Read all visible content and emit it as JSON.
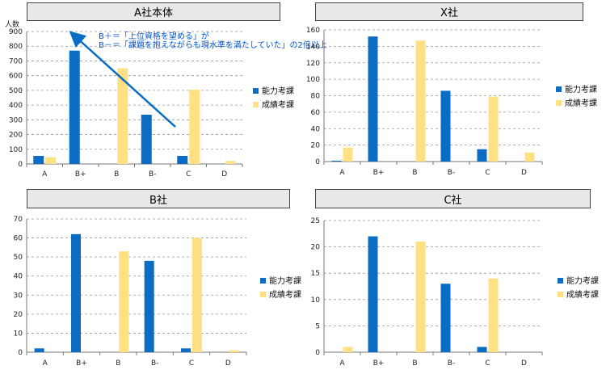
{
  "colors": {
    "ability": "#0a6cc2",
    "performance": "#ffe082",
    "grid": "#999999"
  },
  "chart_data": [
    {
      "type": "bar",
      "title": "A社本体",
      "ylabel": "人数",
      "ylim": [
        0,
        900
      ],
      "ytick_step": 100,
      "categories": [
        "A",
        "B+",
        "B",
        "B-",
        "C",
        "D"
      ],
      "series": [
        {
          "name": "能力考課",
          "values": [
            55,
            770,
            0,
            335,
            55,
            0
          ]
        },
        {
          "name": "成績考課",
          "values": [
            45,
            0,
            650,
            0,
            505,
            20
          ]
        }
      ],
      "annotations": [
        "B＋＝「上位資格を望める」が",
        "B－＝「課題を抱えながらも現水準を満たしていた」の2倍以上"
      ],
      "grid": true,
      "legend": "right"
    },
    {
      "type": "bar",
      "title": "X社",
      "ylim": [
        0,
        160
      ],
      "ytick_step": 20,
      "categories": [
        "A",
        "B+",
        "B",
        "B-",
        "C",
        "D"
      ],
      "series": [
        {
          "name": "能力考課",
          "values": [
            1,
            152,
            0,
            86,
            15,
            0
          ]
        },
        {
          "name": "成績考課",
          "values": [
            17,
            0,
            147,
            0,
            79,
            11
          ]
        }
      ],
      "grid": true,
      "legend": "right"
    },
    {
      "type": "bar",
      "title": "B社",
      "ylim": [
        0,
        70
      ],
      "ytick_step": 10,
      "categories": [
        "A",
        "B+",
        "B",
        "B-",
        "C",
        "D"
      ],
      "series": [
        {
          "name": "能力考課",
          "values": [
            2,
            62,
            0,
            48,
            2,
            0
          ]
        },
        {
          "name": "成績考課",
          "values": [
            0,
            0,
            53,
            0,
            60,
            1
          ]
        }
      ],
      "grid": true,
      "legend": "right"
    },
    {
      "type": "bar",
      "title": "C社",
      "ylim": [
        0,
        25
      ],
      "ytick_step": 5,
      "categories": [
        "A",
        "B+",
        "B",
        "B-",
        "C",
        "D"
      ],
      "series": [
        {
          "name": "能力考課",
          "values": [
            0,
            22,
            0,
            13,
            1,
            0
          ]
        },
        {
          "name": "成績考課",
          "values": [
            1,
            0,
            21,
            0,
            14,
            0
          ]
        }
      ],
      "grid": true,
      "legend": "right"
    }
  ]
}
